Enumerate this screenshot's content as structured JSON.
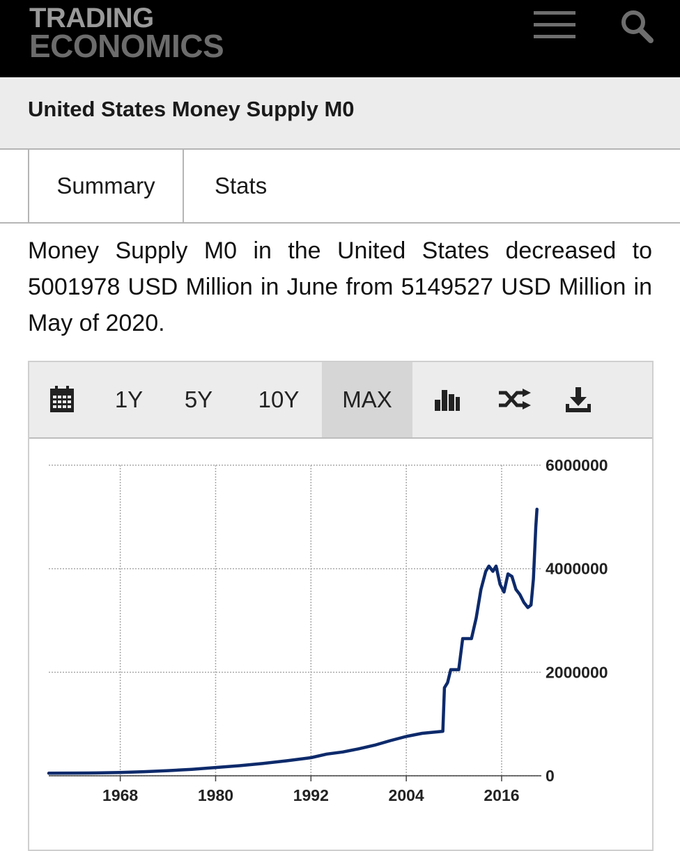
{
  "brand": {
    "line1": "TRADING",
    "line2": "ECONOMICS"
  },
  "header": {
    "menu_icon": "hamburger-menu-icon",
    "search_icon": "search-icon"
  },
  "page_title": "United States Money Supply M0",
  "tabs": [
    {
      "label": "Summary"
    },
    {
      "label": "Stats"
    }
  ],
  "description": "Money Supply M0 in the United States decreased to 5001978 USD Million in June from 5149527 USD Million in May of 2020.",
  "chart_toolbar": {
    "calendar_icon": "calendar-icon",
    "ranges": [
      {
        "label": "1Y"
      },
      {
        "label": "5Y"
      },
      {
        "label": "10Y"
      },
      {
        "label": "MAX",
        "active": true
      }
    ],
    "chart_type_icon": "bar-chart-icon",
    "compare_icon": "shuffle-icon",
    "download_icon": "download-icon"
  },
  "chart_data": {
    "type": "line",
    "title": "",
    "xlabel": "",
    "ylabel": "",
    "x_ticks": [
      "1968",
      "1980",
      "1992",
      "2004",
      "2016"
    ],
    "y_ticks": [
      "0",
      "2000000",
      "4000000",
      "6000000"
    ],
    "ylim": [
      0,
      6000000
    ],
    "xlim": [
      1959,
      2021
    ],
    "grid": true,
    "line_color": "#0d2a6b",
    "series": [
      {
        "x": [
          1959,
          1962,
          1965,
          1968,
          1971,
          1974,
          1977,
          1980,
          1983,
          1986,
          1989,
          1992,
          1994,
          1996,
          1998,
          2000,
          2002,
          2004,
          2006,
          2008.6,
          2008.8,
          2009.2,
          2009.6,
          2010.1,
          2010.6,
          2011.1,
          2011.6,
          2012.2,
          2012.8,
          2013.4,
          2014.0,
          2014.4,
          2014.9,
          2015.3,
          2015.8,
          2016.3,
          2016.8,
          2017.3,
          2017.8,
          2018.3,
          2018.8,
          2019.3,
          2019.7,
          2020.0,
          2020.3,
          2020.45
        ],
        "values": [
          50000,
          52000,
          55000,
          65000,
          80000,
          100000,
          125000,
          160000,
          195000,
          240000,
          290000,
          350000,
          420000,
          460000,
          520000,
          590000,
          680000,
          760000,
          820000,
          860000,
          1700000,
          1800000,
          2050000,
          2050000,
          2050000,
          2650000,
          2650000,
          2650000,
          3050000,
          3600000,
          3950000,
          4050000,
          3950000,
          4050000,
          3700000,
          3550000,
          3900000,
          3850000,
          3600000,
          3500000,
          3350000,
          3250000,
          3300000,
          3800000,
          4800000,
          5150000
        ]
      }
    ]
  }
}
